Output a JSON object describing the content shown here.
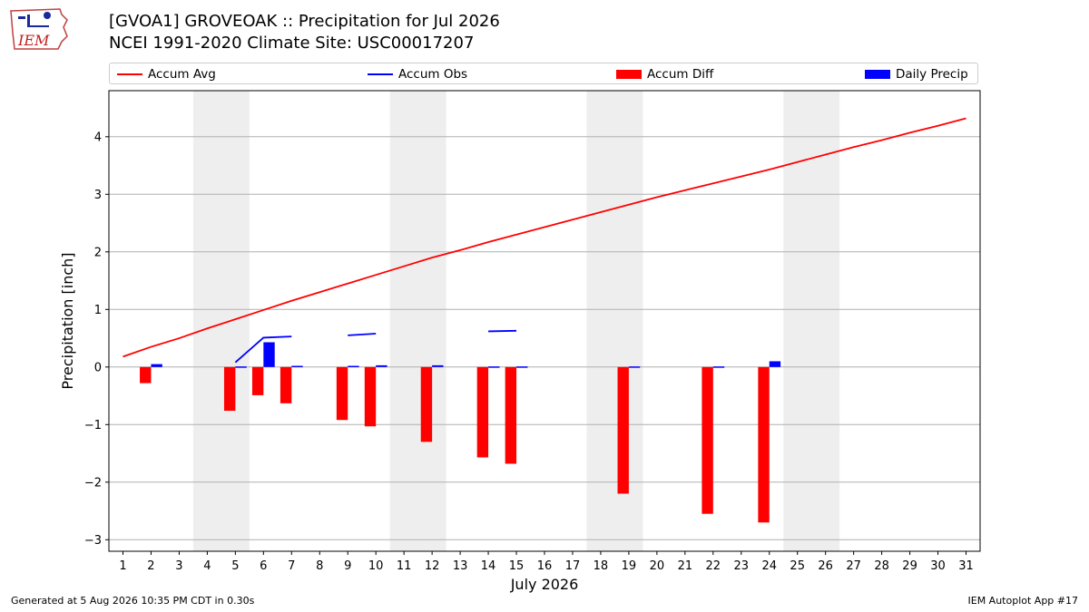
{
  "header": {
    "title_line1": "[GVOA1] GROVEOAK :: Precipitation for Jul 2026",
    "title_line2": "NCEI 1991-2020 Climate Site: USC00017207"
  },
  "logo": {
    "text": "IEM"
  },
  "footer": {
    "left": "Generated at 5 Aug 2026 10:35 PM CDT in 0.30s",
    "right": "IEM Autoplot App #17"
  },
  "legend": [
    {
      "label": "Accum Avg",
      "kind": "line",
      "color": "#ff0000"
    },
    {
      "label": "Accum Obs",
      "kind": "line",
      "color": "#0000ff"
    },
    {
      "label": "Accum Diff",
      "kind": "patch",
      "color": "#ff0000"
    },
    {
      "label": "Daily Precip",
      "kind": "patch",
      "color": "#0000ff"
    }
  ],
  "chart_data": {
    "type": "bar",
    "xlabel": "July 2026",
    "ylabel": "Precipitation [inch]",
    "xlim": [
      0.5,
      31.5
    ],
    "ylim": [
      -3.2,
      4.8
    ],
    "yticks": [
      -3,
      -2,
      -1,
      0,
      1,
      2,
      3,
      4
    ],
    "ytick_labels": [
      "−3",
      "−2",
      "−1",
      "0",
      "1",
      "2",
      "3",
      "4"
    ],
    "days": [
      1,
      2,
      3,
      4,
      5,
      6,
      7,
      8,
      9,
      10,
      11,
      12,
      13,
      14,
      15,
      16,
      17,
      18,
      19,
      20,
      21,
      22,
      23,
      24,
      25,
      26,
      27,
      28,
      29,
      30,
      31
    ],
    "grid": "horizontal",
    "weekend_shading": [
      [
        3.5,
        5.5
      ],
      [
        10.5,
        12.5
      ],
      [
        17.5,
        19.5
      ],
      [
        24.5,
        26.5
      ]
    ],
    "colors": {
      "avg": "#ff0000",
      "obs": "#0000ff",
      "diff": "#ff0000",
      "daily": "#0000ff",
      "shade": "#eeeeee",
      "grid": "#b0b0b0"
    },
    "series": [
      {
        "name": "Accum Avg",
        "kind": "line",
        "x": [
          1,
          2,
          3,
          4,
          5,
          6,
          7,
          8,
          9,
          10,
          11,
          12,
          13,
          14,
          15,
          16,
          17,
          18,
          19,
          20,
          21,
          22,
          23,
          24,
          25,
          26,
          27,
          28,
          29,
          30,
          31
        ],
        "values": [
          0.18,
          0.35,
          0.5,
          0.67,
          0.83,
          0.99,
          1.15,
          1.3,
          1.45,
          1.6,
          1.75,
          1.9,
          2.03,
          2.17,
          2.3,
          2.43,
          2.56,
          2.69,
          2.82,
          2.95,
          3.07,
          3.19,
          3.31,
          3.43,
          3.56,
          3.69,
          3.82,
          3.94,
          4.07,
          4.19,
          4.32
        ]
      },
      {
        "name": "Accum Obs",
        "kind": "segments",
        "segments": [
          {
            "x": [
              5,
              6,
              7
            ],
            "values": [
              0.08,
              0.51,
              0.53
            ]
          },
          {
            "x": [
              9,
              10
            ],
            "values": [
              0.55,
              0.58
            ]
          },
          {
            "x": [
              14,
              15
            ],
            "values": [
              0.62,
              0.63
            ]
          }
        ]
      },
      {
        "name": "Accum Diff",
        "kind": "bar",
        "x": [
          2,
          5,
          6,
          7,
          9,
          10,
          12,
          14,
          15,
          19,
          22,
          24
        ],
        "values": [
          -0.28,
          -0.76,
          -0.49,
          -0.63,
          -0.92,
          -1.03,
          -1.3,
          -1.57,
          -1.68,
          -2.2,
          -2.55,
          -2.7
        ]
      },
      {
        "name": "Daily Precip",
        "kind": "bar",
        "x": [
          2,
          5,
          6,
          7,
          9,
          10,
          12,
          14,
          15,
          19,
          22,
          24
        ],
        "values": [
          0.05,
          0.01,
          0.43,
          0.02,
          0.02,
          0.03,
          0.03,
          0.01,
          0.01,
          0.01,
          0.01,
          0.1
        ]
      }
    ]
  }
}
